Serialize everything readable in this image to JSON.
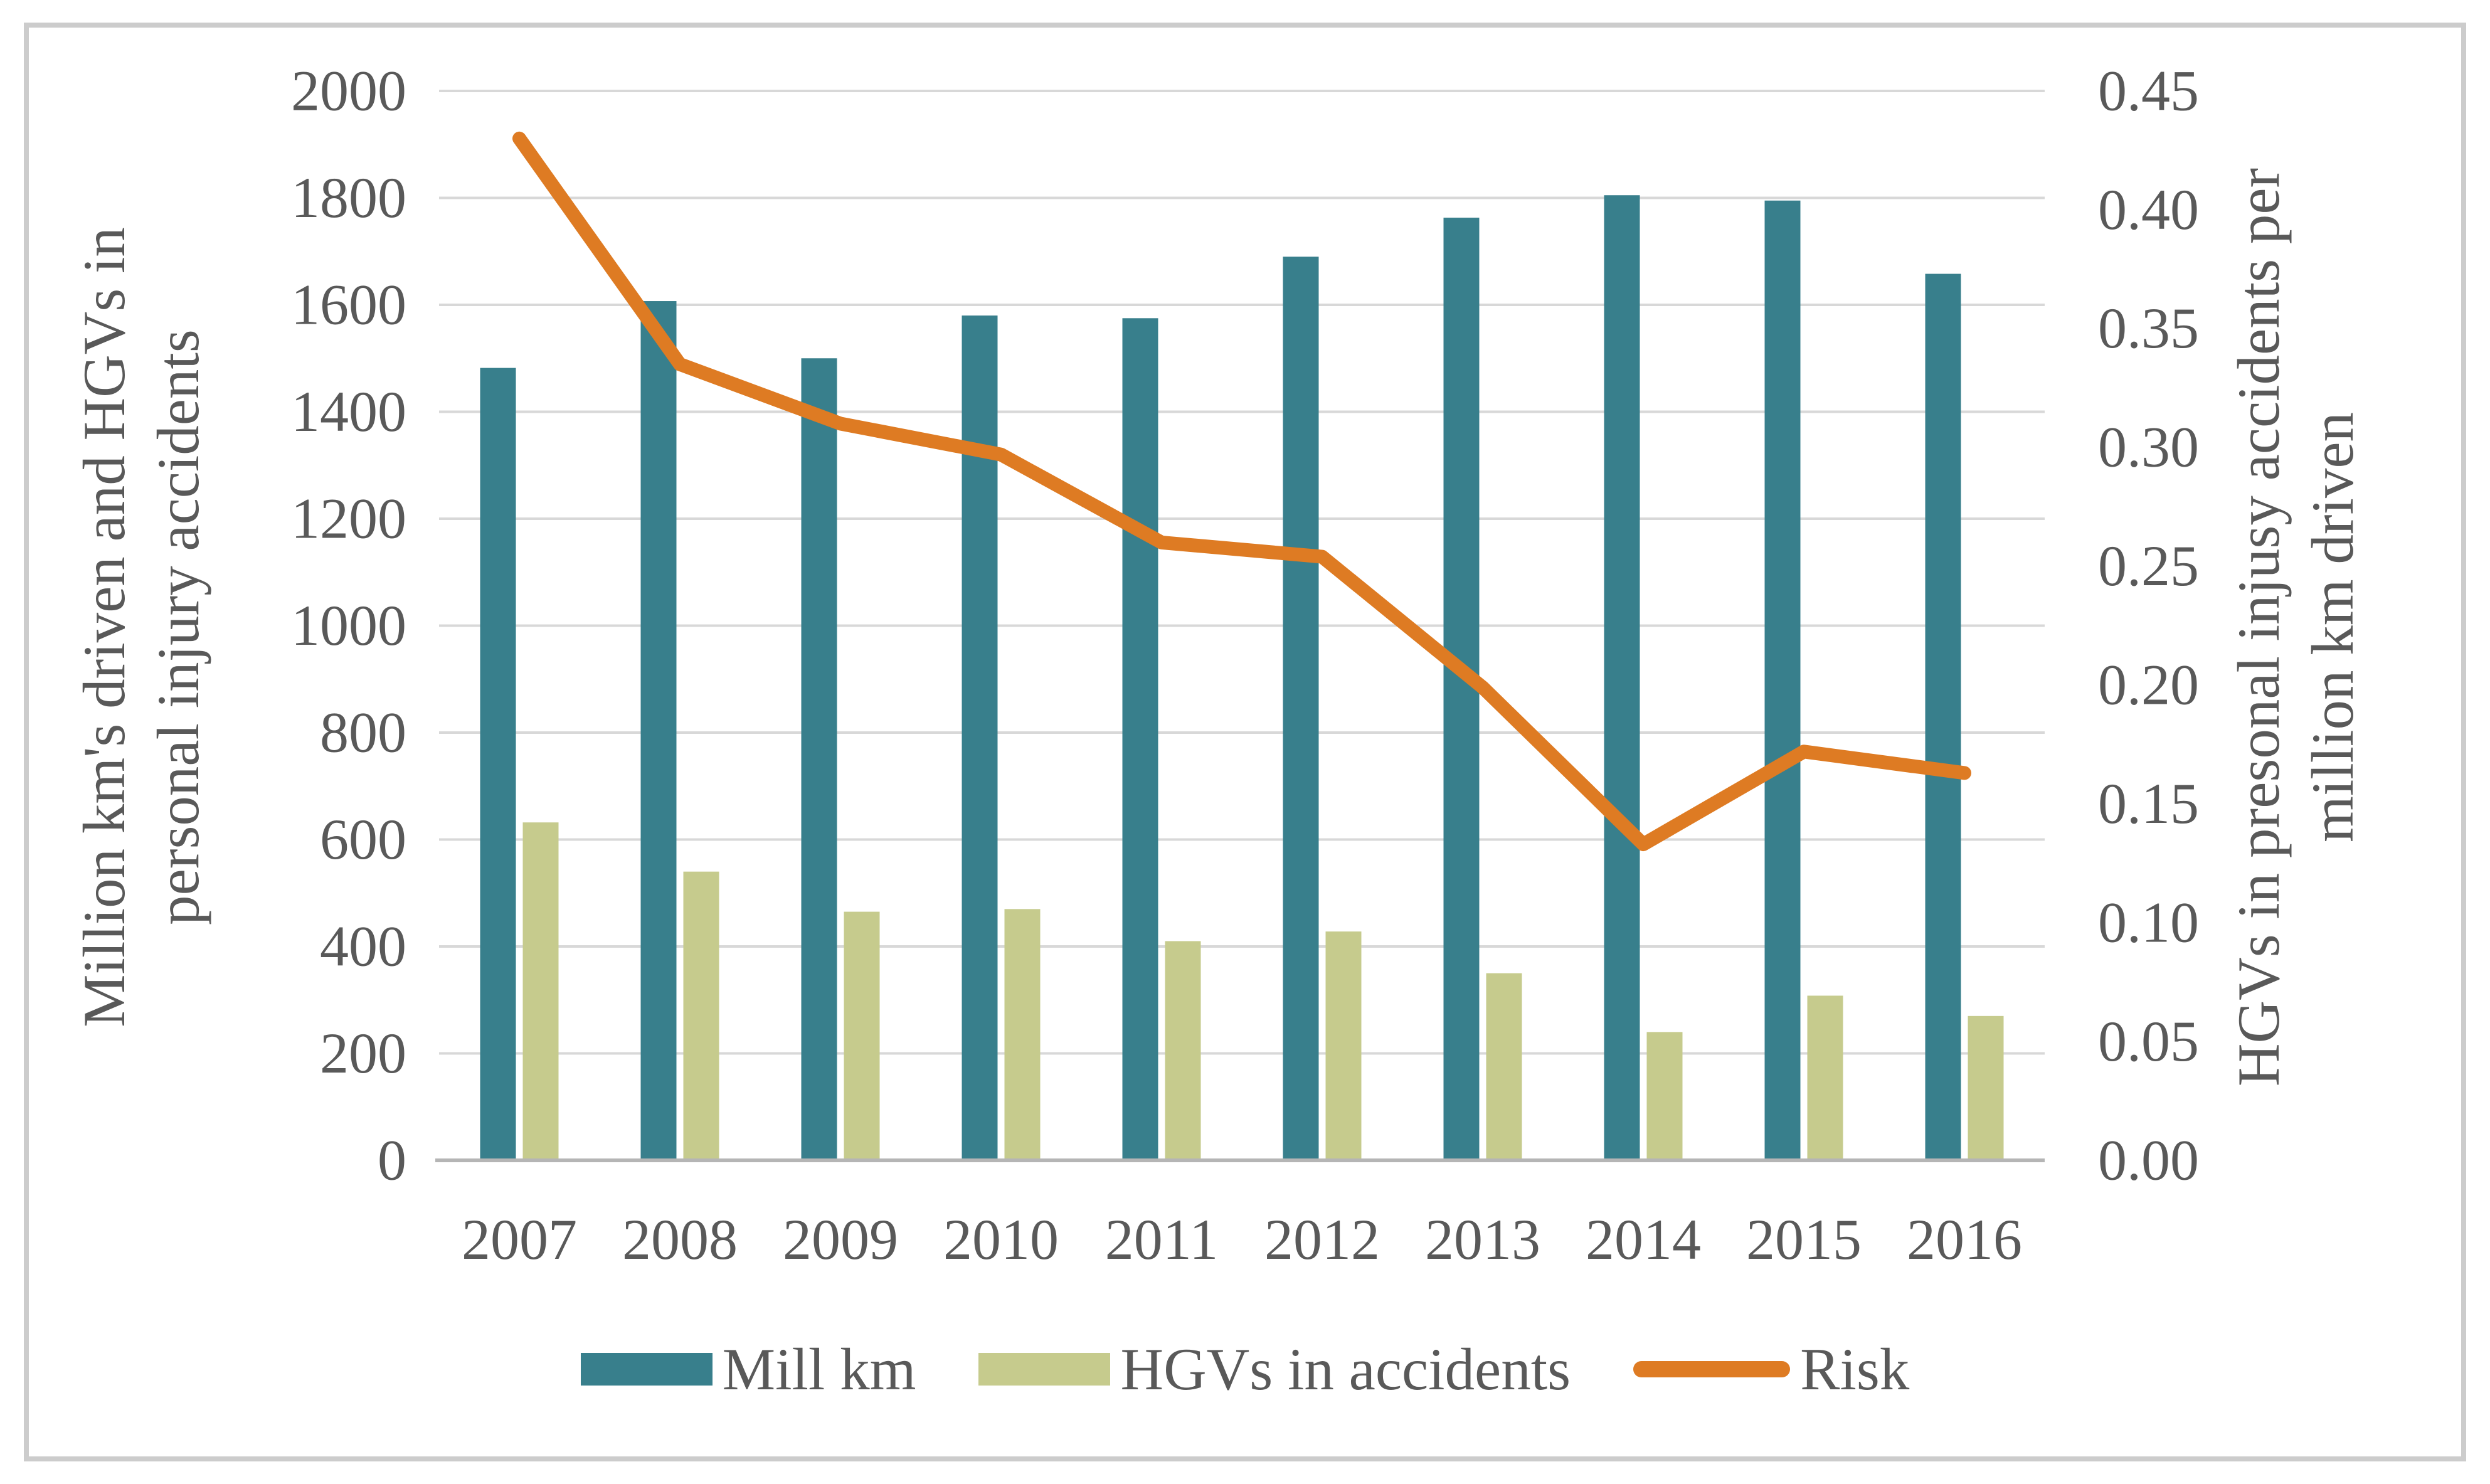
{
  "figure": {
    "background": "#ffffff",
    "border_color": "#cccccc"
  },
  "chart_data": {
    "type": "bar+line",
    "title": "",
    "categories": [
      "2007",
      "2008",
      "2009",
      "2010",
      "2011",
      "2012",
      "2013",
      "2014",
      "2015",
      "2016"
    ],
    "series": [
      {
        "name": "Mill km",
        "type": "bar",
        "axis": "left",
        "color": "#387f8c",
        "values": [
          1482,
          1607,
          1500,
          1580,
          1575,
          1690,
          1763,
          1805,
          1795,
          1658
        ]
      },
      {
        "name": "HGVs in accidents",
        "type": "bar",
        "axis": "left",
        "color": "#c6cb8d",
        "values": [
          632,
          540,
          465,
          470,
          410,
          428,
          350,
          240,
          308,
          270
        ]
      },
      {
        "name": "Risk",
        "type": "line",
        "axis": "right",
        "color": "#de7b23",
        "values": [
          0.43,
          0.335,
          0.31,
          0.297,
          0.26,
          0.254,
          0.199,
          0.133,
          0.172,
          0.163
        ]
      }
    ],
    "left_axis": {
      "title_lines": [
        "Million km's driven and HGVs in",
        "personal injury accidents"
      ],
      "min": 0,
      "max": 2000,
      "step": 200,
      "ticks": [
        "2000",
        "1800",
        "1600",
        "1400",
        "1200",
        "1000",
        "800",
        "600",
        "400",
        "200",
        "0"
      ]
    },
    "right_axis": {
      "title_lines": [
        "HGVs in presonal injusy accidents per",
        "million km driven"
      ],
      "min": 0,
      "max": 0.45,
      "step": 0.05,
      "ticks": [
        "0.45",
        "0.40",
        "0.35",
        "0.30",
        "0.25",
        "0.20",
        "0.15",
        "0.10",
        "0.05",
        "0.00"
      ]
    },
    "grid": {
      "color": "#d8d8d8",
      "baseline_color": "#b5b5b5"
    },
    "text_color": "#595959",
    "legend_position": "bottom"
  }
}
